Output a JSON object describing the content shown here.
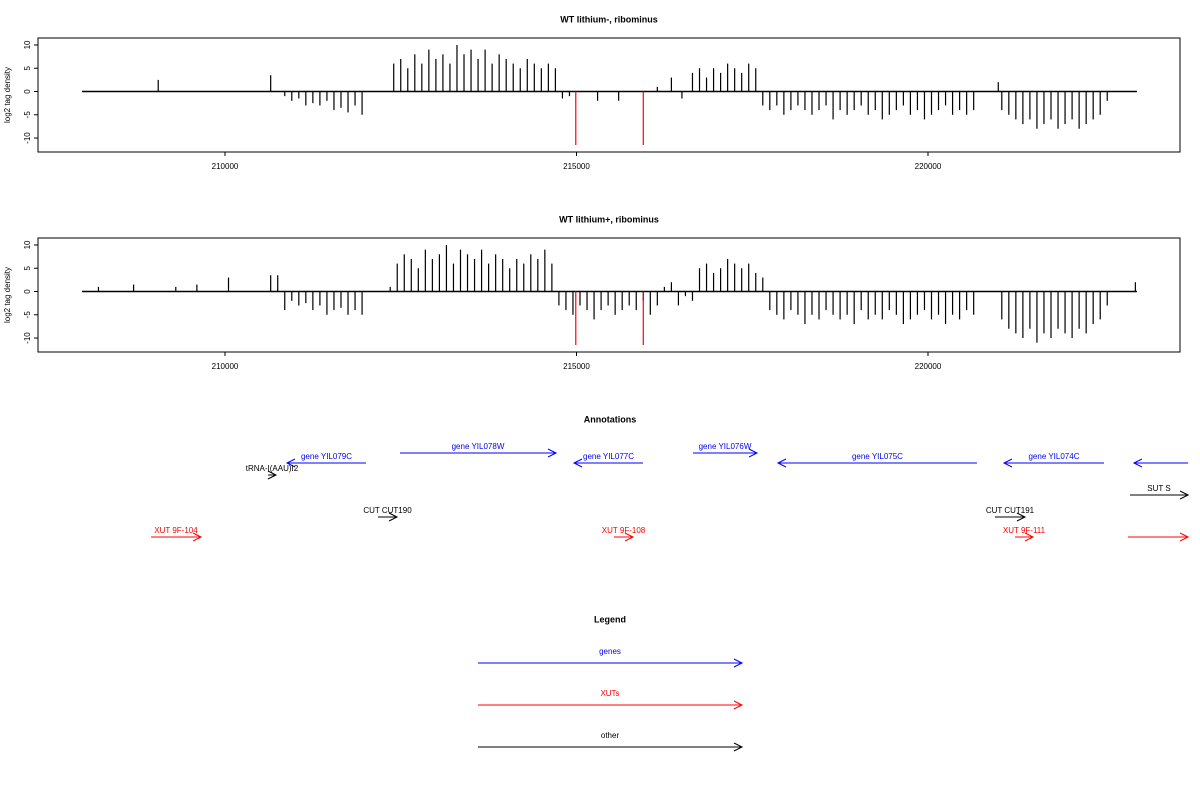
{
  "chart_data": [
    {
      "type": "bar",
      "title": "WT lithium-, ribominus",
      "y_label": "log2 tag density",
      "xlim": [
        207340,
        223585
      ],
      "xticks": [
        210000,
        215000,
        220000
      ],
      "ylim": [
        -13,
        11.5
      ],
      "yticks": [
        -10,
        -5,
        0,
        5,
        10
      ],
      "series": [
        {
          "color": "#000000",
          "x": [
            209050,
            210650,
            210850,
            210950,
            211050,
            211150,
            211250,
            211350,
            211450,
            211550,
            211650,
            211750,
            211850,
            211950,
            212400,
            212500,
            212600,
            212700,
            212800,
            212900,
            213000,
            213100,
            213200,
            213300,
            213400,
            213500,
            213600,
            213700,
            213800,
            213900,
            214000,
            214100,
            214200,
            214300,
            214400,
            214500,
            214600,
            214700,
            214800,
            214900,
            215300,
            215600,
            216150,
            216350,
            216500,
            216650,
            216750,
            216850,
            216950,
            217050,
            217150,
            217250,
            217350,
            217450,
            217550,
            217650,
            217750,
            217850,
            217950,
            218050,
            218150,
            218250,
            218350,
            218450,
            218550,
            218650,
            218750,
            218850,
            218950,
            219050,
            219150,
            219250,
            219350,
            219450,
            219550,
            219650,
            219750,
            219850,
            219950,
            220050,
            220150,
            220250,
            220350,
            220450,
            220550,
            220650,
            221000,
            221050,
            221150,
            221250,
            221350,
            221450,
            221550,
            221650,
            221750,
            221850,
            221950,
            222050,
            222150,
            222250,
            222350,
            222450,
            222550
          ],
          "values": [
            2.5,
            3.5,
            -1,
            -2,
            -1.5,
            -3,
            -2.5,
            -3,
            -2,
            -4,
            -3.5,
            -4.5,
            -3,
            -5,
            6,
            7,
            5,
            8,
            6,
            9,
            7,
            8,
            6,
            10,
            8,
            9,
            7,
            9,
            6,
            8,
            7,
            6,
            5,
            7,
            6,
            5,
            6,
            5,
            -1.5,
            -1,
            -2,
            -2,
            1,
            3,
            -1.5,
            4,
            5,
            3,
            5,
            4,
            6,
            5,
            4,
            6,
            5,
            -3,
            -4,
            -3,
            -5,
            -4,
            -3,
            -4,
            -5,
            -4,
            -3,
            -6,
            -4,
            -5,
            -4,
            -3,
            -5,
            -4,
            -6,
            -5,
            -4,
            -3,
            -5,
            -4,
            -6,
            -5,
            -4,
            -3,
            -5,
            -4,
            -5,
            -4,
            2,
            -4,
            -5,
            -6,
            -7,
            -6,
            -8,
            -7,
            -6,
            -8,
            -7,
            -6,
            -8,
            -7,
            -6,
            -5,
            -2
          ]
        },
        {
          "color": "#ff0000",
          "x": [
            214990,
            215950
          ],
          "values": [
            -11.5,
            -11.5
          ]
        }
      ]
    },
    {
      "type": "bar",
      "title": "WT lithium+, ribominus",
      "y_label": "log2 tag density",
      "xlim": [
        207340,
        223585
      ],
      "xticks": [
        210000,
        215000,
        220000
      ],
      "ylim": [
        -13,
        11.5
      ],
      "yticks": [
        -10,
        -5,
        0,
        5,
        10
      ],
      "series": [
        {
          "color": "#000000",
          "x": [
            208200,
            208700,
            209300,
            209600,
            210050,
            210650,
            210750,
            210850,
            210950,
            211050,
            211150,
            211250,
            211350,
            211450,
            211550,
            211650,
            211750,
            211850,
            211950,
            212350,
            212450,
            212550,
            212650,
            212750,
            212850,
            212950,
            213050,
            213150,
            213250,
            213350,
            213450,
            213550,
            213650,
            213750,
            213850,
            213950,
            214050,
            214150,
            214250,
            214350,
            214450,
            214550,
            214650,
            214750,
            214850,
            214950,
            215050,
            215150,
            215250,
            215350,
            215450,
            215550,
            215650,
            215750,
            215850,
            215950,
            216050,
            216150,
            216250,
            216350,
            216450,
            216550,
            216650,
            216750,
            216850,
            216950,
            217050,
            217150,
            217250,
            217350,
            217450,
            217550,
            217650,
            217750,
            217850,
            217950,
            218050,
            218150,
            218250,
            218350,
            218450,
            218550,
            218650,
            218750,
            218850,
            218950,
            219050,
            219150,
            219250,
            219350,
            219450,
            219550,
            219650,
            219750,
            219850,
            219950,
            220050,
            220150,
            220250,
            220350,
            220450,
            220550,
            220650,
            221050,
            221150,
            221250,
            221350,
            221450,
            221550,
            221650,
            221750,
            221850,
            221950,
            222050,
            222150,
            222250,
            222350,
            222450,
            222550,
            222950
          ],
          "values": [
            1,
            1.5,
            1,
            1.5,
            3,
            3.5,
            3.5,
            -4,
            -2,
            -3,
            -2.5,
            -4,
            -3,
            -5,
            -4,
            -3.5,
            -5,
            -4,
            -5,
            1,
            6,
            8,
            7,
            5,
            9,
            7,
            8,
            10,
            6,
            9,
            8,
            7,
            9,
            6,
            8,
            7,
            5,
            7,
            6,
            8,
            7,
            9,
            6,
            -3,
            -4,
            -5,
            -3,
            -4,
            -6,
            -4,
            -3,
            -5,
            -4,
            -3,
            -4,
            -2,
            -5,
            -3,
            1,
            2,
            -3,
            -1,
            -2,
            5,
            6,
            4,
            5,
            7,
            6,
            5,
            6,
            4,
            3,
            -4,
            -5,
            -6,
            -4,
            -5,
            -7,
            -5,
            -6,
            -4,
            -5,
            -6,
            -5,
            -7,
            -4,
            -6,
            -5,
            -6,
            -4,
            -5,
            -7,
            -6,
            -5,
            -4,
            -6,
            -5,
            -7,
            -5,
            -6,
            -4,
            -5,
            -6,
            -8,
            -9,
            -10,
            -8,
            -11,
            -9,
            -10,
            -8,
            -9,
            -10,
            -8,
            -9,
            -7,
            -6,
            -3,
            2
          ]
        },
        {
          "color": "#ff0000",
          "x": [
            214990,
            215950
          ],
          "values": [
            -11.5,
            -11.5
          ]
        }
      ]
    }
  ],
  "annotations": {
    "title": "Annotations",
    "tracks": [
      [
        {
          "label": "gene YIL078W",
          "start": 212489,
          "end": 214709,
          "color": "#0000ff"
        },
        {
          "label": "gene YIL076W",
          "start": 216657,
          "end": 217568,
          "color": "#0000ff"
        }
      ],
      [
        {
          "label": "gene YIL079C",
          "start": 212006,
          "end": 210882,
          "color": "#0000ff"
        },
        {
          "label": "gene YIL077C",
          "start": 215946,
          "end": 214965,
          "color": "#0000ff"
        },
        {
          "label": "gene YIL075C",
          "start": 220697,
          "end": 217866,
          "color": "#0000ff"
        },
        {
          "label": "gene YIL074C",
          "start": 222504,
          "end": 221081,
          "color": "#0000ff"
        },
        {
          "start": 223700,
          "end": 222930,
          "color": "#0000ff"
        }
      ],
      [
        {
          "label": "tRNA-I(AAU)I2",
          "start": 210612,
          "end": 210725,
          "color": "#000000"
        }
      ],
      [
        {
          "label": "SUT S",
          "start": 222873,
          "end": 223700,
          "color": "#000000"
        }
      ],
      [
        {
          "label": "CUT CUT190",
          "start": 212176,
          "end": 212447,
          "color": "#000000"
        },
        {
          "label": "CUT CUT191",
          "start": 220953,
          "end": 221380,
          "color": "#000000"
        }
      ],
      [
        {
          "label": "XUT 9F-104",
          "start": 208947,
          "end": 209659,
          "color": "#ff0000"
        },
        {
          "label": "XUT 9F-108",
          "start": 215534,
          "end": 215804,
          "color": "#ff0000"
        },
        {
          "label": "XUT 9F-111",
          "start": 221238,
          "end": 221494,
          "color": "#ff0000"
        },
        {
          "start": 222845,
          "end": 223700,
          "color": "#ff0000"
        }
      ]
    ]
  },
  "legend": {
    "title": "Legend",
    "entries": [
      {
        "label": "genes",
        "color": "#0000ff"
      },
      {
        "label": "XUTs",
        "color": "#ff0000"
      },
      {
        "label": "other",
        "color": "#000000"
      }
    ]
  }
}
